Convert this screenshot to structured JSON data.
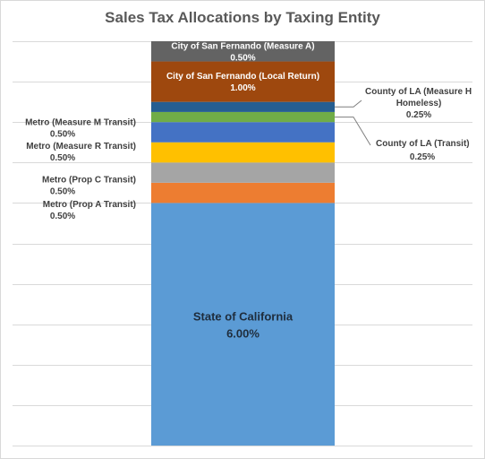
{
  "chart_data": {
    "type": "bar",
    "stacked": true,
    "title": "Sales Tax Allocations by Taxing Entity",
    "grid": true,
    "ylim": [
      0,
      10.0
    ],
    "series": [
      {
        "name": "State of California",
        "value": 6.0,
        "value_label": "6.00%",
        "color": "#5b9bd5"
      },
      {
        "name": "Metro (Prop A Transit)",
        "value": 0.5,
        "value_label": "0.50%",
        "color": "#ed7d31"
      },
      {
        "name": "Metro (Prop C Transit)",
        "value": 0.5,
        "value_label": "0.50%",
        "color": "#a5a5a5"
      },
      {
        "name": "Metro (Measure R Transit)",
        "value": 0.5,
        "value_label": "0.50%",
        "color": "#ffc000"
      },
      {
        "name": "Metro (Measure M Transit)",
        "value": 0.5,
        "value_label": "0.50%",
        "color": "#4472c4"
      },
      {
        "name": "County of LA (Transit)",
        "value": 0.25,
        "value_label": "0.25%",
        "color": "#70ad47"
      },
      {
        "name": "County of LA (Measure H Homeless)",
        "value": 0.25,
        "value_label": "0.25%",
        "color": "#255e91"
      },
      {
        "name": "City of San Fernando (Local Return)",
        "value": 1.0,
        "value_label": "1.00%",
        "color": "#9e480e"
      },
      {
        "name": "City of San Fernando (Measure A)",
        "value": 0.5,
        "value_label": "0.50%",
        "color": "#636363"
      }
    ]
  }
}
